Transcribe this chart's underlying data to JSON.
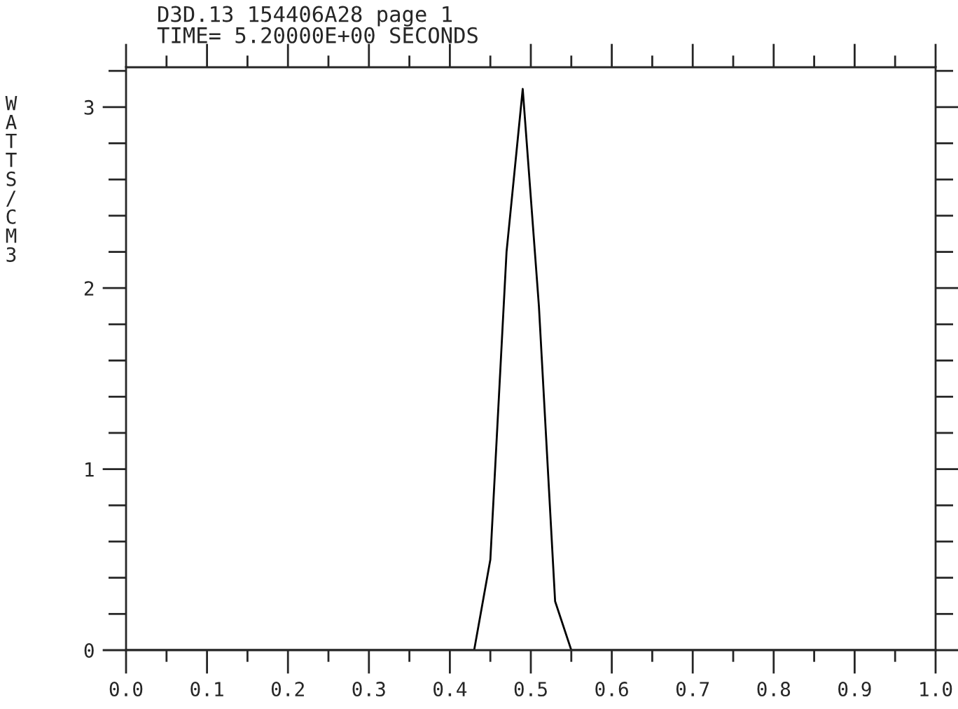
{
  "chart_data": {
    "type": "line",
    "title": "D3D.13 154406A28 page 1",
    "subtitle": "TIME= 5.20000E+00 SECONDS",
    "ylabel": "WATTS/CM3",
    "x": [
      0.0,
      0.43,
      0.45,
      0.47,
      0.49,
      0.51,
      0.53,
      0.55,
      1.0
    ],
    "series": [
      {
        "color": "#000000",
        "values": [
          0,
          0,
          0.5,
          2.2,
          3.1,
          1.9,
          0.27,
          0,
          0
        ]
      }
    ],
    "xlim": [
      0,
      1
    ],
    "ylim": [
      0,
      3.22
    ],
    "xticks": [
      {
        "value": 0,
        "label": "0.0"
      },
      {
        "value": 0.05,
        "label": null
      },
      {
        "value": 0.1,
        "label": "0.1"
      },
      {
        "value": 0.15,
        "label": null
      },
      {
        "value": 0.2,
        "label": "0.2"
      },
      {
        "value": 0.25,
        "label": null
      },
      {
        "value": 0.3,
        "label": "0.3"
      },
      {
        "value": 0.35,
        "label": null
      },
      {
        "value": 0.4,
        "label": "0.4"
      },
      {
        "value": 0.45,
        "label": null
      },
      {
        "value": 0.5,
        "label": "0.5"
      },
      {
        "value": 0.55,
        "label": null
      },
      {
        "value": 0.6,
        "label": "0.6"
      },
      {
        "value": 0.65,
        "label": null
      },
      {
        "value": 0.7,
        "label": "0.7"
      },
      {
        "value": 0.75,
        "label": null
      },
      {
        "value": 0.8,
        "label": "0.8"
      },
      {
        "value": 0.85,
        "label": null
      },
      {
        "value": 0.9,
        "label": "0.9"
      },
      {
        "value": 0.95,
        "label": null
      },
      {
        "value": 1.0,
        "label": "1.0"
      }
    ],
    "yticks": [
      0,
      {
        "value": 0.2,
        "label": null
      },
      {
        "value": 0.4,
        "label": null
      },
      {
        "value": 0.6,
        "label": null
      },
      {
        "value": 0.8,
        "label": null
      },
      1,
      {
        "value": 1.2,
        "label": null
      },
      {
        "value": 1.4,
        "label": null
      },
      {
        "value": 1.6,
        "label": null
      },
      {
        "value": 1.8,
        "label": null
      },
      2,
      {
        "value": 2.2,
        "label": null
      },
      {
        "value": 2.4,
        "label": null
      },
      {
        "value": 2.6,
        "label": null
      },
      {
        "value": 2.8,
        "label": null
      },
      3,
      {
        "value": 3.2,
        "label": null
      }
    ],
    "grid": false,
    "legend": false,
    "marker": "none",
    "line_style": "solid"
  }
}
